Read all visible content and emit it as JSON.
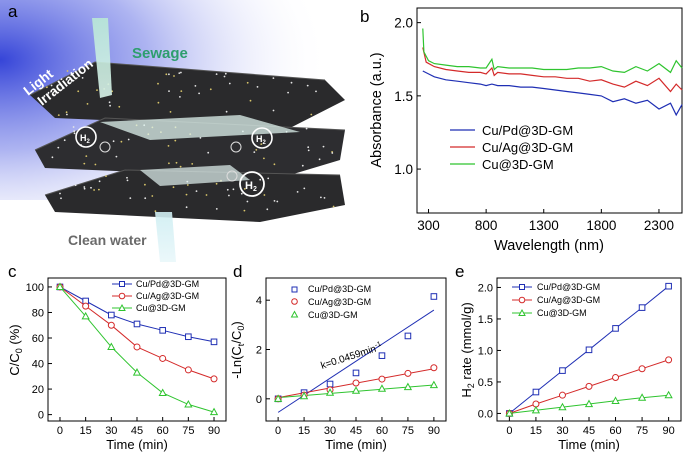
{
  "panel_labels": {
    "a": "a",
    "b": "b",
    "c": "c",
    "d": "d",
    "e": "e"
  },
  "schematic": {
    "light_line1": "Light",
    "light_line2": "Irradiation",
    "sewage": "Sewage",
    "clean_water": "Clean water",
    "h2_label": "H",
    "h2_sub": "2"
  },
  "colors": {
    "blue": "#1f2fb4",
    "red": "#d42a2a",
    "green": "#2fc42f",
    "sewage": "#2e9e6e",
    "clean": "#6a6a6a"
  },
  "chart_data": [
    {
      "id": "b",
      "type": "line",
      "xlabel": "Wavelength (nm)",
      "ylabel": "Absorbance (a.u.)",
      "xlim": [
        200,
        2500
      ],
      "ylim": [
        0.7,
        2.1
      ],
      "xticks": [
        300,
        800,
        1300,
        1800,
        2300
      ],
      "yticks": [
        1.0,
        1.5,
        2.0
      ],
      "ytick_labels": [
        "1.0",
        "1.5",
        "2.0"
      ],
      "series": [
        {
          "name": "Cu/Pd@3D-GM",
          "color": "blue",
          "x": [
            250,
            300,
            350,
            450,
            550,
            650,
            750,
            800,
            850,
            900,
            1000,
            1100,
            1200,
            1300,
            1400,
            1500,
            1600,
            1700,
            1800,
            1900,
            2000,
            2100,
            2200,
            2300,
            2400,
            2450,
            2500
          ],
          "y": [
            1.67,
            1.65,
            1.63,
            1.61,
            1.6,
            1.59,
            1.58,
            1.57,
            1.58,
            1.57,
            1.57,
            1.56,
            1.56,
            1.55,
            1.54,
            1.53,
            1.52,
            1.51,
            1.5,
            1.46,
            1.48,
            1.45,
            1.47,
            1.41,
            1.45,
            1.37,
            1.44
          ]
        },
        {
          "name": "Cu/Ag@3D-GM",
          "color": "red",
          "x": [
            250,
            280,
            350,
            450,
            550,
            650,
            750,
            800,
            850,
            870,
            900,
            1000,
            1100,
            1200,
            1300,
            1400,
            1500,
            1600,
            1700,
            1800,
            1900,
            2000,
            2100,
            2200,
            2300,
            2400,
            2450,
            2500
          ],
          "y": [
            1.83,
            1.73,
            1.7,
            1.68,
            1.67,
            1.66,
            1.66,
            1.65,
            1.69,
            1.64,
            1.66,
            1.65,
            1.65,
            1.64,
            1.63,
            1.63,
            1.62,
            1.62,
            1.6,
            1.61,
            1.58,
            1.56,
            1.6,
            1.57,
            1.62,
            1.53,
            1.58,
            1.54
          ]
        },
        {
          "name": "Cu@3D-GM",
          "color": "green",
          "x": [
            250,
            260,
            300,
            350,
            450,
            550,
            650,
            750,
            800,
            850,
            870,
            900,
            1000,
            1100,
            1200,
            1300,
            1400,
            1500,
            1600,
            1700,
            1800,
            1900,
            2000,
            2100,
            2200,
            2300,
            2400,
            2450,
            2500
          ],
          "y": [
            1.96,
            1.8,
            1.74,
            1.72,
            1.71,
            1.7,
            1.7,
            1.69,
            1.69,
            1.75,
            1.68,
            1.7,
            1.69,
            1.69,
            1.69,
            1.68,
            1.68,
            1.68,
            1.69,
            1.69,
            1.7,
            1.67,
            1.66,
            1.7,
            1.67,
            1.72,
            1.66,
            1.74,
            1.69
          ]
        }
      ]
    },
    {
      "id": "c",
      "type": "line",
      "xlabel": "Time (min)",
      "ylabel": "C/C",
      "ylabel_sub": "0",
      "ylabel_suffix": " (%)",
      "xlim": [
        -7,
        97
      ],
      "ylim": [
        -5,
        107
      ],
      "xticks": [
        0,
        15,
        30,
        45,
        60,
        75,
        90
      ],
      "yticks": [
        0,
        20,
        40,
        60,
        80,
        100
      ],
      "series": [
        {
          "name": "Cu/Pd@3D-GM",
          "color": "blue",
          "marker": "square",
          "x": [
            0,
            15,
            30,
            45,
            60,
            75,
            90
          ],
          "y": [
            100,
            89,
            78,
            71,
            66,
            61,
            57
          ]
        },
        {
          "name": "Cu/Ag@3D-GM",
          "color": "red",
          "marker": "circle",
          "x": [
            0,
            15,
            30,
            45,
            60,
            75,
            90
          ],
          "y": [
            100,
            85,
            70,
            53,
            44,
            35,
            28
          ]
        },
        {
          "name": "Cu@3D-GM",
          "color": "green",
          "marker": "triangle",
          "x": [
            0,
            15,
            30,
            45,
            60,
            75,
            90
          ],
          "y": [
            100,
            77,
            53,
            33,
            17,
            8,
            2
          ]
        }
      ]
    },
    {
      "id": "d",
      "type": "scatter",
      "xlabel": "Time (min)",
      "ylabel": "-Ln(C",
      "ylabel_sub": "t",
      "ylabel_mid": "/C",
      "ylabel_sub2": "0",
      "ylabel_suffix": ")",
      "annotation": "k=0.0459min",
      "annotation_sup": "-1",
      "xlim": [
        -7,
        97
      ],
      "ylim": [
        -0.9,
        4.9
      ],
      "xticks": [
        0,
        15,
        30,
        45,
        60,
        75,
        90
      ],
      "yticks": [
        0,
        2,
        4
      ],
      "fit_lines": [
        {
          "color": "blue",
          "x": [
            0,
            90
          ],
          "y": [
            -0.55,
            3.6
          ]
        },
        {
          "color": "red",
          "x": [
            0,
            90
          ],
          "y": [
            0.05,
            1.22
          ]
        },
        {
          "color": "green",
          "x": [
            0,
            90
          ],
          "y": [
            0.05,
            0.56
          ]
        }
      ],
      "series": [
        {
          "name": "Cu/Pd@3D-GM",
          "color": "blue",
          "marker": "square",
          "x": [
            0,
            15,
            30,
            45,
            60,
            75,
            90
          ],
          "y": [
            0,
            0.25,
            0.6,
            1.05,
            1.75,
            2.55,
            4.15
          ]
        },
        {
          "name": "Cu/Ag@3D-GM",
          "color": "red",
          "marker": "circle",
          "x": [
            0,
            15,
            30,
            45,
            60,
            75,
            90
          ],
          "y": [
            0,
            0.15,
            0.36,
            0.64,
            0.8,
            1.03,
            1.26
          ]
        },
        {
          "name": "Cu@3D-GM",
          "color": "green",
          "marker": "triangle",
          "x": [
            0,
            15,
            30,
            45,
            60,
            75,
            90
          ],
          "y": [
            0,
            0.11,
            0.25,
            0.33,
            0.41,
            0.48,
            0.56
          ]
        }
      ]
    },
    {
      "id": "e",
      "type": "line",
      "xlabel": "Time (min)",
      "ylabel": "H",
      "ylabel_sub": "2",
      "ylabel_suffix": " rate (mmol/g)",
      "xlim": [
        -7,
        97
      ],
      "ylim": [
        -0.12,
        2.15
      ],
      "xticks": [
        0,
        15,
        30,
        45,
        60,
        75,
        90
      ],
      "yticks": [
        0.0,
        0.5,
        1.0,
        1.5,
        2.0
      ],
      "ytick_labels": [
        "0.0",
        "0.5",
        "1.0",
        "1.5",
        "2.0"
      ],
      "series": [
        {
          "name": "Cu/Pd@3D-GM",
          "color": "blue",
          "marker": "square",
          "x": [
            0,
            15,
            30,
            45,
            60,
            75,
            90
          ],
          "y": [
            0,
            0.34,
            0.68,
            1.01,
            1.35,
            1.68,
            2.02
          ]
        },
        {
          "name": "Cu/Ag@3D-GM",
          "color": "red",
          "marker": "circle",
          "x": [
            0,
            15,
            30,
            45,
            60,
            75,
            90
          ],
          "y": [
            0,
            0.15,
            0.29,
            0.43,
            0.57,
            0.71,
            0.85
          ]
        },
        {
          "name": "Cu@3D-GM",
          "color": "green",
          "marker": "triangle",
          "x": [
            0,
            15,
            30,
            45,
            60,
            75,
            90
          ],
          "y": [
            0,
            0.05,
            0.1,
            0.15,
            0.2,
            0.25,
            0.29
          ]
        }
      ]
    }
  ]
}
